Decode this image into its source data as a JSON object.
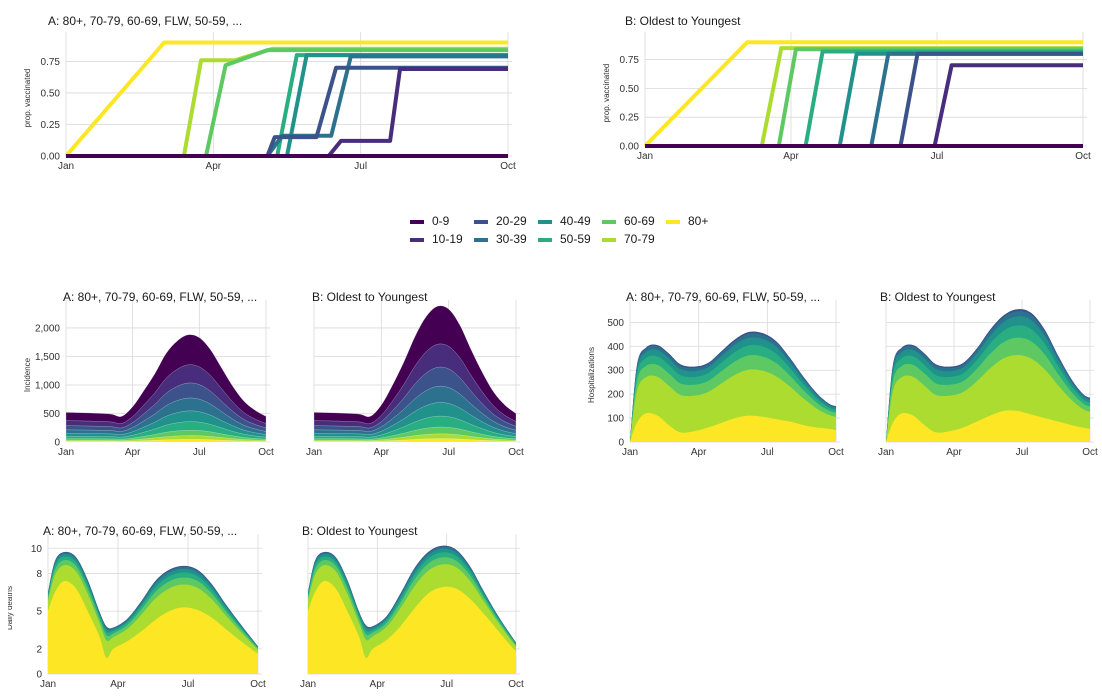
{
  "legend": {
    "groups": [
      "0-9",
      "10-19",
      "20-29",
      "30-39",
      "40-49",
      "50-59",
      "60-69",
      "70-79",
      "80+"
    ],
    "colors": [
      "#440154",
      "#472d7b",
      "#3b528b",
      "#2c728e",
      "#21918c",
      "#28ae80",
      "#5ec962",
      "#addc30",
      "#fde725"
    ]
  },
  "chart_data": [
    {
      "id": "vac-a",
      "type": "line",
      "title": "A: 80+, 70-79, 60-69, FLW, 50-59, ...",
      "xlabel": "",
      "ylabel": "prop. vaccinated",
      "x_ticks": [
        "Jan",
        "Apr",
        "Jul",
        "Oct"
      ],
      "y_ticks": [
        "0.00",
        "0.25",
        "0.50",
        "0.75"
      ],
      "xlim": [
        0,
        9
      ],
      "ylim": [
        0,
        0.92
      ],
      "grid": true,
      "series": [
        {
          "group": "0-9",
          "points": [
            [
              0,
              0
            ],
            [
              9,
              0
            ]
          ]
        },
        {
          "group": "10-19",
          "points": [
            [
              0,
              0
            ],
            [
              5.35,
              0
            ],
            [
              5.6,
              0.12
            ],
            [
              6.6,
              0.12
            ],
            [
              6.8,
              0.69
            ],
            [
              9,
              0.69
            ]
          ]
        },
        {
          "group": "20-29",
          "points": [
            [
              0,
              0
            ],
            [
              3.4,
              0
            ],
            [
              4.1,
              0
            ],
            [
              4.25,
              0.15
            ],
            [
              5.1,
              0.15
            ],
            [
              5.5,
              0.7
            ],
            [
              9,
              0.7
            ]
          ]
        },
        {
          "group": "30-39",
          "points": [
            [
              0,
              0
            ],
            [
              3.4,
              0
            ],
            [
              4.1,
              0
            ],
            [
              4.4,
              0.16
            ],
            [
              5.4,
              0.16
            ],
            [
              5.8,
              0.79
            ],
            [
              9,
              0.79
            ]
          ]
        },
        {
          "group": "40-49",
          "points": [
            [
              0,
              0
            ],
            [
              4.5,
              0
            ],
            [
              4.9,
              0.8
            ],
            [
              9,
              0.8
            ]
          ]
        },
        {
          "group": "50-59",
          "points": [
            [
              0,
              0
            ],
            [
              4.3,
              0
            ],
            [
              4.7,
              0.8
            ],
            [
              9,
              0.8
            ]
          ]
        },
        {
          "group": "60-69",
          "points": [
            [
              0,
              0
            ],
            [
              2.85,
              0
            ],
            [
              3.25,
              0.72
            ],
            [
              4.1,
              0.84
            ],
            [
              9,
              0.84
            ]
          ]
        },
        {
          "group": "70-79",
          "points": [
            [
              0,
              0
            ],
            [
              2.4,
              0
            ],
            [
              2.75,
              0.76
            ],
            [
              3.45,
              0.76
            ],
            [
              4.2,
              0.85
            ],
            [
              9,
              0.85
            ]
          ]
        },
        {
          "group": "80+",
          "points": [
            [
              0,
              0
            ],
            [
              2.0,
              0.9
            ],
            [
              9,
              0.9
            ]
          ]
        }
      ]
    },
    {
      "id": "vac-b",
      "type": "line",
      "title": "B: Oldest to Youngest",
      "xlabel": "",
      "ylabel": "prop. vaccinated",
      "x_ticks": [
        "Jan",
        "Apr",
        "Jul",
        "Oct"
      ],
      "y_ticks": [
        "0.00",
        "0.25",
        "0.50",
        "0.75"
      ],
      "xlim": [
        0,
        9
      ],
      "ylim": [
        0,
        0.92
      ],
      "grid": true,
      "series": [
        {
          "group": "0-9",
          "points": [
            [
              0,
              0
            ],
            [
              9,
              0
            ]
          ]
        },
        {
          "group": "10-19",
          "points": [
            [
              0,
              0
            ],
            [
              5.95,
              0
            ],
            [
              6.3,
              0.7
            ],
            [
              9,
              0.7
            ]
          ]
        },
        {
          "group": "20-29",
          "points": [
            [
              0,
              0
            ],
            [
              5.25,
              0
            ],
            [
              5.6,
              0.8
            ],
            [
              9,
              0.8
            ]
          ]
        },
        {
          "group": "30-39",
          "points": [
            [
              0,
              0
            ],
            [
              4.65,
              0
            ],
            [
              5.0,
              0.8
            ],
            [
              9,
              0.8
            ]
          ]
        },
        {
          "group": "40-49",
          "points": [
            [
              0,
              0
            ],
            [
              4.0,
              0
            ],
            [
              4.35,
              0.8
            ],
            [
              9,
              0.8
            ]
          ]
        },
        {
          "group": "50-59",
          "points": [
            [
              0,
              0
            ],
            [
              3.3,
              0
            ],
            [
              3.65,
              0.82
            ],
            [
              9,
              0.82
            ]
          ]
        },
        {
          "group": "60-69",
          "points": [
            [
              0,
              0
            ],
            [
              2.75,
              0
            ],
            [
              3.1,
              0.84
            ],
            [
              9,
              0.84
            ]
          ]
        },
        {
          "group": "70-79",
          "points": [
            [
              0,
              0
            ],
            [
              2.4,
              0
            ],
            [
              2.8,
              0.85
            ],
            [
              9,
              0.85
            ]
          ]
        },
        {
          "group": "80+",
          "points": [
            [
              0,
              0
            ],
            [
              2.1,
              0.9
            ],
            [
              9,
              0.9
            ]
          ]
        }
      ]
    },
    {
      "id": "inc-a",
      "type": "area",
      "title": "A: 80+, 70-79, 60-69, FLW, 50-59, ...",
      "xlabel": "",
      "ylabel": "Incidence",
      "x_ticks": [
        "Jan",
        "Apr",
        "Jul",
        "Oct"
      ],
      "y_ticks": [
        "0",
        "500",
        "1,000",
        "1,500",
        "2,000"
      ],
      "xlim": [
        0,
        9
      ],
      "ylim": [
        0,
        2350
      ],
      "grid": true,
      "total": {
        "x": [
          0,
          1,
          2,
          2.5,
          3,
          3.5,
          4,
          4.5,
          5,
          5.5,
          6,
          6.5,
          7,
          7.5,
          8,
          8.5,
          9
        ],
        "y": [
          520,
          510,
          490,
          450,
          620,
          900,
          1200,
          1550,
          1770,
          1880,
          1830,
          1620,
          1300,
          980,
          720,
          560,
          450
        ]
      },
      "shares_top_to_bottom": [
        0.28,
        0.17,
        0.14,
        0.12,
        0.1,
        0.08,
        0.05,
        0.035,
        0.025
      ]
    },
    {
      "id": "inc-b",
      "type": "area",
      "title": "B: Oldest to Youngest",
      "xlabel": "",
      "ylabel": "",
      "x_ticks": [
        "Jan",
        "Apr",
        "Jul",
        "Oct"
      ],
      "y_ticks": [],
      "xlim": [
        0,
        9
      ],
      "ylim": [
        0,
        2350
      ],
      "grid": true,
      "total": {
        "x": [
          0,
          1,
          2,
          2.5,
          3,
          3.5,
          4,
          4.5,
          5,
          5.5,
          6,
          6.5,
          7,
          7.5,
          8,
          8.5,
          9
        ],
        "y": [
          520,
          510,
          490,
          450,
          650,
          1000,
          1400,
          1850,
          2200,
          2380,
          2330,
          2050,
          1620,
          1220,
          880,
          650,
          500
        ]
      },
      "shares_top_to_bottom": [
        0.28,
        0.17,
        0.14,
        0.12,
        0.1,
        0.08,
        0.05,
        0.035,
        0.025
      ]
    },
    {
      "id": "hosp-a",
      "type": "area",
      "title": "A: 80+, 70-79, 60-69, FLW, 50-59, ...",
      "xlabel": "",
      "ylabel": "Hospitalizations",
      "x_ticks": [
        "Jan",
        "Apr",
        "Jul",
        "Oct"
      ],
      "y_ticks": [
        "0",
        "100",
        "200",
        "300",
        "400",
        "500"
      ],
      "xlim": [
        0,
        9
      ],
      "ylim": [
        0,
        560
      ],
      "grid": true,
      "total": {
        "x": [
          0,
          0.3,
          0.7,
          1.2,
          1.7,
          2.2,
          2.8,
          3.4,
          4.0,
          4.6,
          5.2,
          5.8,
          6.4,
          7.0,
          7.6,
          8.2,
          8.7,
          9
        ],
        "y": [
          0,
          320,
          395,
          405,
          370,
          325,
          315,
          330,
          380,
          430,
          460,
          455,
          420,
          350,
          270,
          200,
          160,
          150
        ]
      },
      "bottom": {
        "x": [
          0,
          0.3,
          0.7,
          1.2,
          1.7,
          2.2,
          2.8,
          3.4,
          4.0,
          4.6,
          5.2,
          5.8,
          6.4,
          7.0,
          7.6,
          8.2,
          8.7,
          9
        ],
        "y": [
          0,
          80,
          120,
          110,
          70,
          40,
          45,
          60,
          80,
          100,
          110,
          105,
          95,
          85,
          70,
          60,
          55,
          50
        ]
      }
    },
    {
      "id": "hosp-b",
      "type": "area",
      "title": "B: Oldest to Youngest",
      "xlabel": "",
      "ylabel": "",
      "x_ticks": [
        "Jan",
        "Apr",
        "Jul",
        "Oct"
      ],
      "y_ticks": [],
      "xlim": [
        0,
        9
      ],
      "ylim": [
        0,
        560
      ],
      "grid": true,
      "total": {
        "x": [
          0,
          0.3,
          0.7,
          1.2,
          1.7,
          2.2,
          2.8,
          3.4,
          4.0,
          4.6,
          5.2,
          5.8,
          6.4,
          7.0,
          7.6,
          8.2,
          8.7,
          9
        ],
        "y": [
          0,
          320,
          395,
          405,
          370,
          325,
          315,
          330,
          390,
          470,
          530,
          555,
          540,
          470,
          360,
          260,
          200,
          185
        ]
      },
      "bottom": {
        "x": [
          0,
          0.3,
          0.7,
          1.2,
          1.7,
          2.2,
          2.8,
          3.4,
          4.0,
          4.6,
          5.2,
          5.8,
          6.4,
          7.0,
          7.6,
          8.2,
          8.7,
          9
        ],
        "y": [
          0,
          80,
          120,
          110,
          70,
          40,
          45,
          60,
          85,
          110,
          130,
          130,
          115,
          100,
          85,
          70,
          60,
          55
        ]
      }
    },
    {
      "id": "death-a",
      "type": "area",
      "title": "A: 80+, 70-79, 60-69, FLW, 50-59, ...",
      "xlabel": "",
      "ylabel": "Daily deaths",
      "x_ticks": [
        "Jan",
        "Apr",
        "Jul",
        "Oct"
      ],
      "y_ticks": [
        "0",
        "2",
        "5",
        "8",
        "10"
      ],
      "xlim": [
        0,
        9
      ],
      "ylim": [
        0,
        10.5
      ],
      "grid": true,
      "total": {
        "x": [
          0,
          0.3,
          0.7,
          1.2,
          1.7,
          2.2,
          2.5,
          2.8,
          3.4,
          4.0,
          4.6,
          5.2,
          5.8,
          6.4,
          7.0,
          7.6,
          8.2,
          8.7,
          9
        ],
        "y": [
          6.5,
          9.0,
          9.7,
          9.3,
          7.5,
          5.0,
          3.8,
          3.7,
          4.4,
          5.8,
          7.4,
          8.3,
          8.6,
          8.3,
          7.2,
          5.6,
          4.1,
          2.9,
          2.2
        ]
      },
      "bottom": {
        "x": [
          0,
          0.3,
          0.7,
          1.2,
          1.7,
          2.2,
          2.5,
          2.8,
          3.4,
          4.0,
          4.6,
          5.2,
          5.8,
          6.4,
          7.0,
          7.6,
          8.2,
          8.7,
          9
        ],
        "y": [
          5.0,
          6.5,
          7.4,
          6.8,
          5.0,
          3.0,
          1.3,
          2.0,
          2.6,
          3.4,
          4.3,
          5.0,
          5.3,
          5.1,
          4.5,
          3.6,
          2.7,
          2.0,
          1.6
        ]
      }
    },
    {
      "id": "death-b",
      "type": "area",
      "title": "B: Oldest to Youngest",
      "xlabel": "",
      "ylabel": "",
      "x_ticks": [
        "Jan",
        "Apr",
        "Jul",
        "Oct"
      ],
      "y_ticks": [],
      "xlim": [
        0,
        9
      ],
      "ylim": [
        0,
        10.5
      ],
      "grid": true,
      "total": {
        "x": [
          0,
          0.3,
          0.7,
          1.2,
          1.7,
          2.2,
          2.5,
          2.8,
          3.4,
          4.0,
          4.6,
          5.2,
          5.8,
          6.4,
          7.0,
          7.6,
          8.2,
          8.7,
          9
        ],
        "y": [
          6.5,
          9.0,
          9.7,
          9.3,
          7.5,
          5.0,
          3.9,
          3.8,
          4.6,
          6.4,
          8.4,
          9.7,
          10.2,
          9.9,
          8.6,
          6.6,
          4.7,
          3.3,
          2.5
        ]
      },
      "bottom": {
        "x": [
          0,
          0.3,
          0.7,
          1.2,
          1.7,
          2.2,
          2.5,
          2.8,
          3.4,
          4.0,
          4.6,
          5.2,
          5.8,
          6.4,
          7.0,
          7.6,
          8.2,
          8.7,
          9
        ],
        "y": [
          5.0,
          6.5,
          7.4,
          6.8,
          5.0,
          3.0,
          1.3,
          2.0,
          2.7,
          3.8,
          5.2,
          6.4,
          6.9,
          6.8,
          6.0,
          4.8,
          3.5,
          2.4,
          1.8
        ]
      }
    }
  ]
}
